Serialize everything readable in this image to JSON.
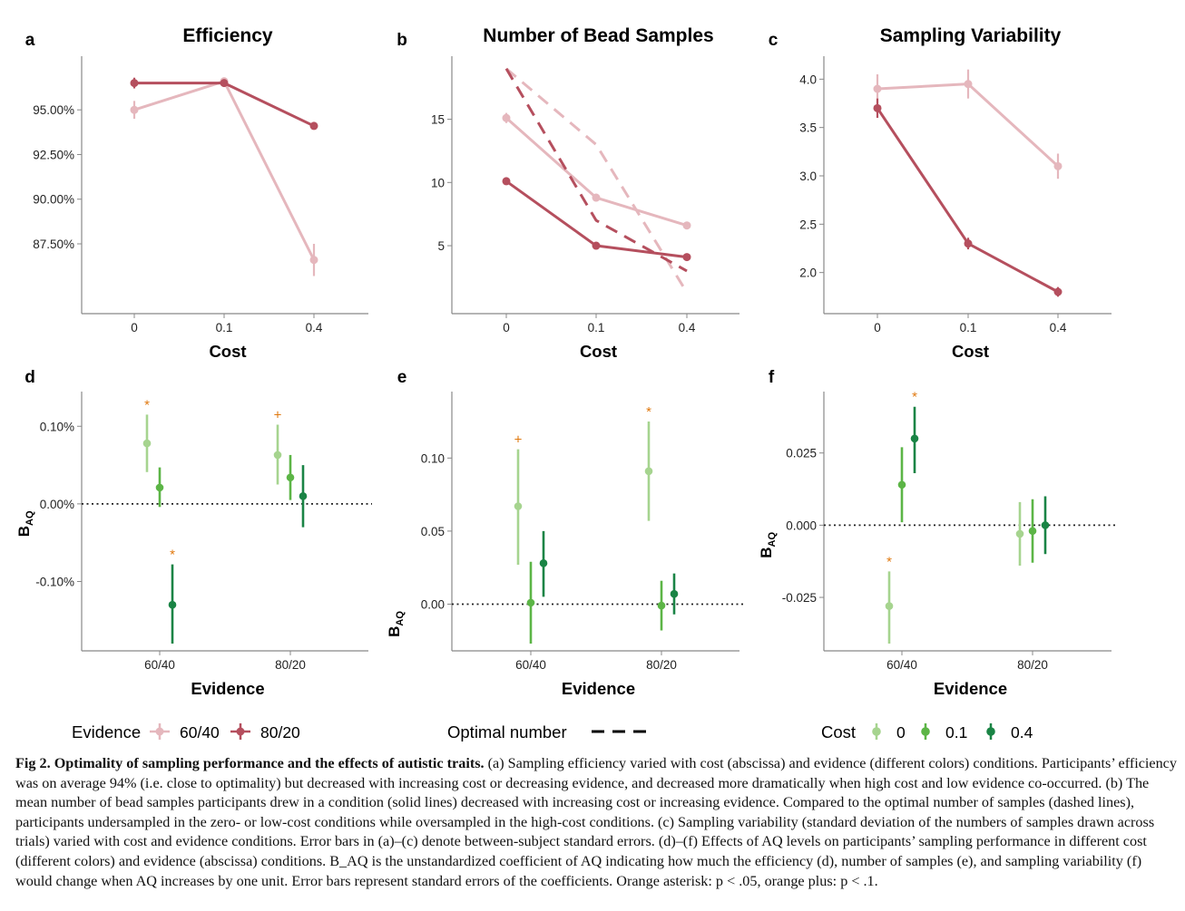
{
  "colors": {
    "light": "#e5b7bd",
    "dark": "#b54f5e",
    "g0": "#a6d48f",
    "g1": "#5cb546",
    "g2": "#1a8445",
    "sig": "#e0780e",
    "axis": "#888888"
  },
  "chart_data": [
    {
      "panel": "a",
      "type": "line",
      "title": "Efficiency",
      "xlabel": "Cost",
      "ylabel": "",
      "categories": [
        "0",
        "0.1",
        "0.4"
      ],
      "ylim": [
        84.0,
        97.8
      ],
      "yticks": [
        87.5,
        90.0,
        92.5,
        95.0
      ],
      "ytick_labels": [
        "87.50%",
        "90.00%",
        "92.50%",
        "95.00%"
      ],
      "series": [
        {
          "name": "60/40",
          "color": "light",
          "values": [
            95.0,
            96.6,
            86.6
          ],
          "err": [
            0.5,
            0.2,
            0.9
          ]
        },
        {
          "name": "80/20",
          "color": "dark",
          "values": [
            96.5,
            96.5,
            94.1
          ],
          "err": [
            0.3,
            0.2,
            0.2
          ]
        }
      ]
    },
    {
      "panel": "b",
      "type": "line",
      "title": "Number of Bead Samples",
      "xlabel": "Cost",
      "ylabel": "",
      "categories": [
        "0",
        "0.1",
        "0.4"
      ],
      "ylim": [
        0.2,
        19.7
      ],
      "yticks": [
        5,
        10,
        15
      ],
      "ytick_labels": [
        "5",
        "10",
        "15"
      ],
      "series": [
        {
          "name": "60/40",
          "color": "light",
          "values": [
            15.1,
            8.8,
            6.6
          ],
          "err": [
            0.4,
            0.3,
            0.2
          ]
        },
        {
          "name": "80/20",
          "color": "dark",
          "values": [
            10.1,
            5.0,
            4.1
          ],
          "err": [
            0.3,
            0.2,
            0.2
          ]
        },
        {
          "name": "Optimal number 60/40",
          "color": "light",
          "dashed": true,
          "values": [
            19.0,
            13.0,
            1.3
          ]
        },
        {
          "name": "Optimal number 80/20",
          "color": "dark",
          "dashed": true,
          "values": [
            19.0,
            7.0,
            3.0
          ]
        }
      ]
    },
    {
      "panel": "c",
      "type": "line",
      "title": "Sampling Variability",
      "xlabel": "Cost",
      "ylabel": "",
      "categories": [
        "0",
        "0.1",
        "0.4"
      ],
      "ylim": [
        1.65,
        4.2
      ],
      "yticks": [
        2.0,
        2.5,
        3.0,
        3.5,
        4.0
      ],
      "ytick_labels": [
        "2.0",
        "2.5",
        "3.0",
        "3.5",
        "4.0"
      ],
      "series": [
        {
          "name": "60/40",
          "color": "light",
          "values": [
            3.9,
            3.95,
            3.1
          ],
          "err": [
            0.15,
            0.15,
            0.13
          ]
        },
        {
          "name": "80/20",
          "color": "dark",
          "values": [
            3.7,
            2.3,
            1.8
          ],
          "err": [
            0.1,
            0.06,
            0.05
          ]
        }
      ]
    },
    {
      "panel": "d",
      "type": "scatter",
      "title": "",
      "xlabel": "Evidence",
      "ylabel": "B_AQ",
      "categories": [
        "60/40",
        "80/20"
      ],
      "ylim": [
        -0.18,
        0.14
      ],
      "yticks": [
        -0.1,
        0.0,
        0.1
      ],
      "ytick_labels": [
        "-0.10%",
        "0.00%",
        "0.10%"
      ],
      "points": [
        {
          "group": "60/40",
          "cost": "0",
          "color": "g0",
          "value": 0.078,
          "lo": 0.041,
          "hi": 0.115,
          "sig": "*"
        },
        {
          "group": "60/40",
          "cost": "0.1",
          "color": "g1",
          "value": 0.021,
          "lo": -0.004,
          "hi": 0.047,
          "sig": ""
        },
        {
          "group": "60/40",
          "cost": "0.4",
          "color": "g2",
          "value": -0.13,
          "lo": -0.18,
          "hi": -0.078,
          "sig": "*"
        },
        {
          "group": "80/20",
          "cost": "0",
          "color": "g0",
          "value": 0.063,
          "lo": 0.025,
          "hi": 0.102,
          "sig": "+"
        },
        {
          "group": "80/20",
          "cost": "0.1",
          "color": "g1",
          "value": 0.034,
          "lo": 0.005,
          "hi": 0.063,
          "sig": ""
        },
        {
          "group": "80/20",
          "cost": "0.4",
          "color": "g2",
          "value": 0.01,
          "lo": -0.03,
          "hi": 0.05,
          "sig": ""
        }
      ]
    },
    {
      "panel": "e",
      "type": "scatter",
      "title": "",
      "xlabel": "Evidence",
      "ylabel": "B_AQ",
      "categories": [
        "60/40",
        "80/20"
      ],
      "ylim": [
        -0.027,
        0.143
      ],
      "yticks": [
        0.0,
        0.05,
        0.1
      ],
      "ytick_labels": [
        "0.00",
        "0.05",
        "0.10"
      ],
      "points": [
        {
          "group": "60/40",
          "cost": "0",
          "color": "g0",
          "value": 0.067,
          "lo": 0.027,
          "hi": 0.106,
          "sig": "+"
        },
        {
          "group": "60/40",
          "cost": "0.1",
          "color": "g1",
          "value": 0.001,
          "lo": -0.027,
          "hi": 0.029,
          "sig": ""
        },
        {
          "group": "60/40",
          "cost": "0.4",
          "color": "g2",
          "value": 0.028,
          "lo": 0.005,
          "hi": 0.05,
          "sig": ""
        },
        {
          "group": "80/20",
          "cost": "0",
          "color": "g0",
          "value": 0.091,
          "lo": 0.057,
          "hi": 0.125,
          "sig": "*"
        },
        {
          "group": "80/20",
          "cost": "0.1",
          "color": "g1",
          "value": -0.001,
          "lo": -0.018,
          "hi": 0.016,
          "sig": ""
        },
        {
          "group": "80/20",
          "cost": "0.4",
          "color": "g2",
          "value": 0.007,
          "lo": -0.007,
          "hi": 0.021,
          "sig": ""
        }
      ]
    },
    {
      "panel": "f",
      "type": "scatter",
      "title": "",
      "xlabel": "Evidence",
      "ylabel": "B_AQ",
      "categories": [
        "60/40",
        "80/20"
      ],
      "ylim": [
        -0.041,
        0.045
      ],
      "yticks": [
        -0.025,
        0.0,
        0.025
      ],
      "ytick_labels": [
        "-0.025",
        "0.000",
        "0.025"
      ],
      "points": [
        {
          "group": "60/40",
          "cost": "0",
          "color": "g0",
          "value": -0.028,
          "lo": -0.041,
          "hi": -0.016,
          "sig": "*"
        },
        {
          "group": "60/40",
          "cost": "0.1",
          "color": "g1",
          "value": 0.014,
          "lo": 0.001,
          "hi": 0.027,
          "sig": ""
        },
        {
          "group": "60/40",
          "cost": "0.4",
          "color": "g2",
          "value": 0.03,
          "lo": 0.018,
          "hi": 0.041,
          "sig": "*"
        },
        {
          "group": "80/20",
          "cost": "0",
          "color": "g0",
          "value": -0.003,
          "lo": -0.014,
          "hi": 0.008,
          "sig": ""
        },
        {
          "group": "80/20",
          "cost": "0.1",
          "color": "g1",
          "value": -0.002,
          "lo": -0.013,
          "hi": 0.009,
          "sig": ""
        },
        {
          "group": "80/20",
          "cost": "0.4",
          "color": "g2",
          "value": 0.0,
          "lo": -0.01,
          "hi": 0.01,
          "sig": ""
        }
      ]
    }
  ],
  "legends": {
    "evidence": {
      "title": "Evidence",
      "items": [
        {
          "label": "60/40",
          "color": "light"
        },
        {
          "label": "80/20",
          "color": "dark"
        }
      ]
    },
    "optimal": {
      "title": "Optimal number"
    },
    "cost": {
      "title": "Cost",
      "items": [
        {
          "label": "0",
          "color": "g0"
        },
        {
          "label": "0.1",
          "color": "g1"
        },
        {
          "label": "0.4",
          "color": "g2"
        }
      ]
    }
  },
  "caption": {
    "heading": "Fig 2. Optimality of sampling performance and the effects of autistic traits.",
    "body": " (a) Sampling efficiency varied with cost (abscissa) and evidence (different colors) conditions. Participants’ efficiency was on average 94% (i.e. close to optimality) but decreased with increasing cost or decreasing evidence, and decreased more dramatically when high cost and low evidence co-occurred. (b) The mean number of bead samples participants drew in a condition (solid lines) decreased with increasing cost or increasing evidence. Compared to the optimal number of samples (dashed lines), participants undersampled in the zero- or low-cost conditions while oversampled in the high-cost conditions. (c) Sampling variability (standard deviation of the numbers of samples drawn across trials) varied with cost and evidence conditions. Error bars in (a)–(c) denote between-subject standard errors. (d)–(f) Effects of AQ levels on participants’ sampling performance in different cost (different colors) and evidence (abscissa) conditions. B_AQ is the unstandardized coefficient of AQ indicating how much the efficiency (d), number of samples (e), and sampling variability (f) would change when AQ increases by one unit. Error bars represent standard errors of the coefficients. Orange asterisk: p < .05, orange plus: p < .1."
  }
}
